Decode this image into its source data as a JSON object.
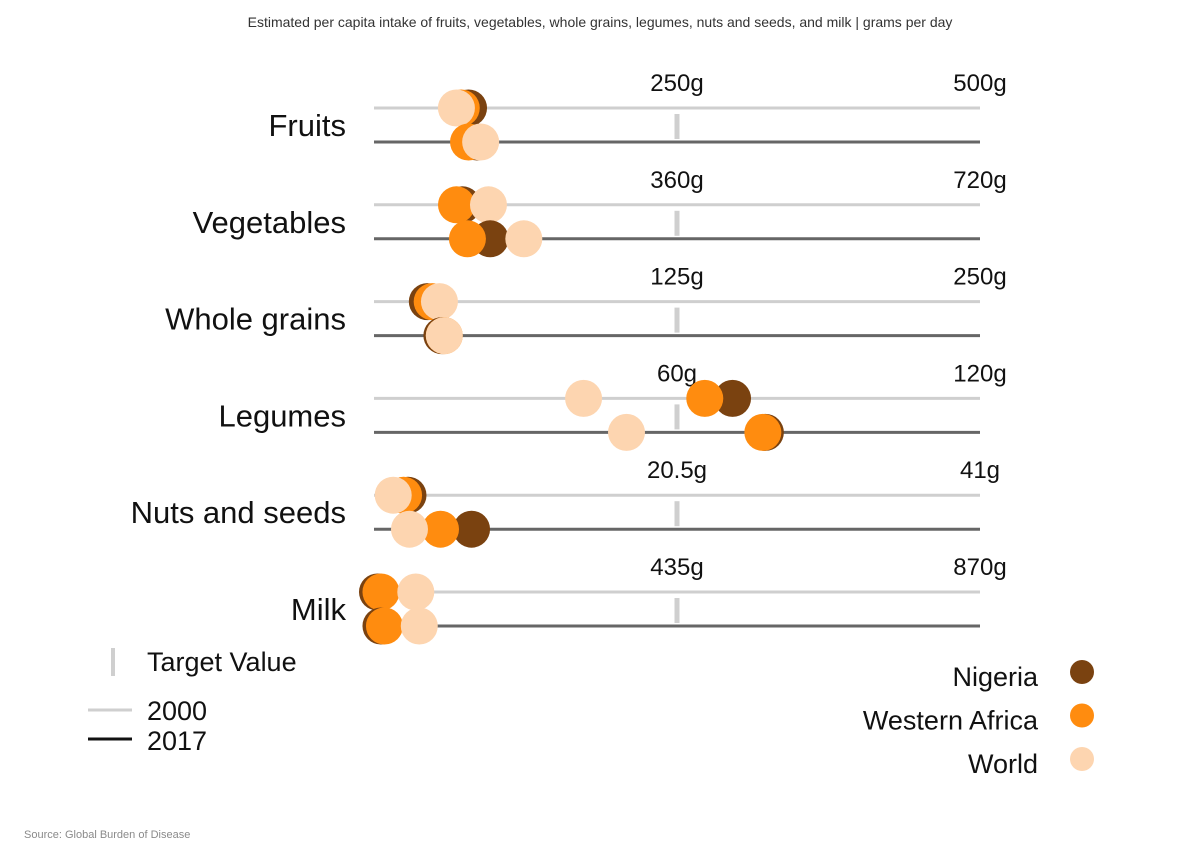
{
  "chart_data": {
    "type": "scatter",
    "title": "Estimated per capita intake of fruits, vegetables, whole grains, legumes, nuts and seeds, and milk | grams per day",
    "source": "Source: Global Burden of Disease",
    "years": [
      "2000",
      "2017"
    ],
    "target_legend_label": "Target Value",
    "series": [
      {
        "name": "Nigeria",
        "color": "#7a4210"
      },
      {
        "name": "Western Africa",
        "color": "#ff8c0f"
      },
      {
        "name": "World",
        "color": "#fdd5b0"
      }
    ],
    "categories": [
      {
        "name": "Fruits",
        "target_label": "250g",
        "max_label": "500g",
        "target": 250,
        "max": 500,
        "values": {
          "2000": {
            "Nigeria": 78,
            "Western Africa": 72,
            "World": 68
          },
          "2017": {
            "Nigeria": 85,
            "Western Africa": 78,
            "World": 88
          }
        }
      },
      {
        "name": "Vegetables",
        "target_label": "360g",
        "max_label": "720g",
        "target": 360,
        "max": 720,
        "values": {
          "2000": {
            "Nigeria": 105,
            "Western Africa": 98,
            "World": 136
          },
          "2017": {
            "Nigeria": 138,
            "Western Africa": 111,
            "World": 178
          }
        }
      },
      {
        "name": "Whole grains",
        "target_label": "125g",
        "max_label": "250g",
        "target": 125,
        "max": 250,
        "values": {
          "2000": {
            "Nigeria": 22,
            "Western Africa": 24,
            "World": 27
          },
          "2017": {
            "Nigeria": 28,
            "Western Africa": 29,
            "World": 29
          }
        }
      },
      {
        "name": "Legumes",
        "target_label": "60g",
        "max_label": "120g",
        "target": 60,
        "max": 120,
        "values": {
          "2000": {
            "Nigeria": 71,
            "Western Africa": 65.5,
            "World": 41.5
          },
          "2017": {
            "Nigeria": 77.5,
            "Western Africa": 77,
            "World": 50
          }
        }
      },
      {
        "name": "Nuts and seeds",
        "target_label": "20.5g",
        "max_label": "41g",
        "target": 20.5,
        "max": 41,
        "values": {
          "2000": {
            "Nigeria": 2.3,
            "Western Africa": 2.0,
            "World": 1.3
          },
          "2017": {
            "Nigeria": 6.6,
            "Western Africa": 4.5,
            "World": 2.4
          }
        }
      },
      {
        "name": "Milk",
        "target_label": "435g",
        "max_label": "870g",
        "target": 435,
        "max": 870,
        "values": {
          "2000": {
            "Nigeria": 5,
            "Western Africa": 10,
            "World": 60
          },
          "2017": {
            "Nigeria": 10,
            "Western Africa": 15,
            "World": 65
          }
        }
      }
    ]
  }
}
